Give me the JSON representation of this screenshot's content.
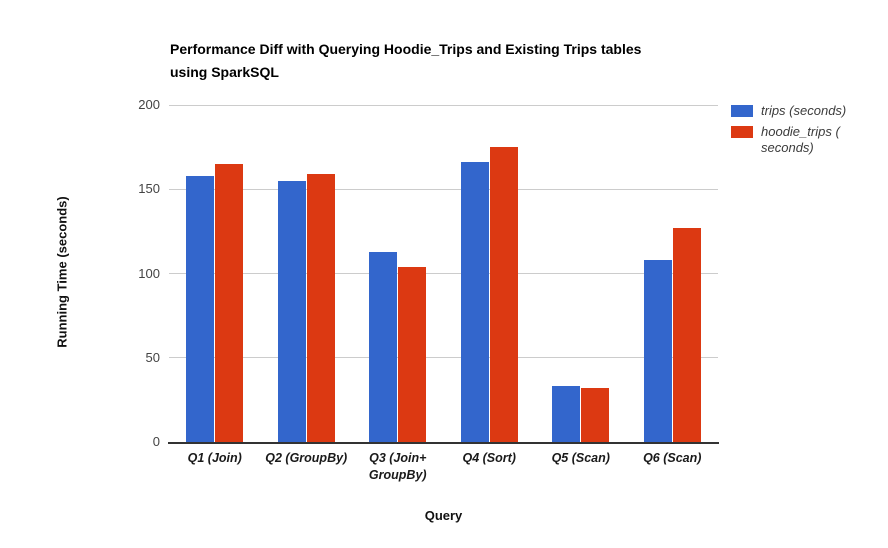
{
  "chart_data": {
    "type": "bar",
    "title": "Performance Diff with Querying Hoodie_Trips and Existing Trips tables using SparkSQL",
    "title_lines": [
      "Performance Diff with Querying Hoodie_Trips and Existing Trips tables",
      "using SparkSQL"
    ],
    "xlabel": "Query",
    "ylabel": "Running Time (seconds)",
    "categories": [
      "Q1 (Join)",
      "Q2 (GroupBy)",
      "Q3 (Join+ GroupBy)",
      "Q4 (Sort)",
      "Q5 (Scan)",
      "Q6 (Scan)"
    ],
    "series": [
      {
        "name": "trips (seconds)",
        "color": "#3366cc",
        "values": [
          158,
          155,
          113,
          166,
          33,
          108
        ]
      },
      {
        "name": "hoodie_trips ( seconds)",
        "color": "#dc3912",
        "values": [
          165,
          159,
          104,
          175,
          32,
          127
        ]
      }
    ],
    "ylim": [
      0,
      200
    ],
    "yticks": [
      0,
      50,
      100,
      150,
      200
    ],
    "grid": true,
    "legend_position": "right",
    "gridline_color": "#cccccc",
    "axis_line_color": "#333333"
  }
}
